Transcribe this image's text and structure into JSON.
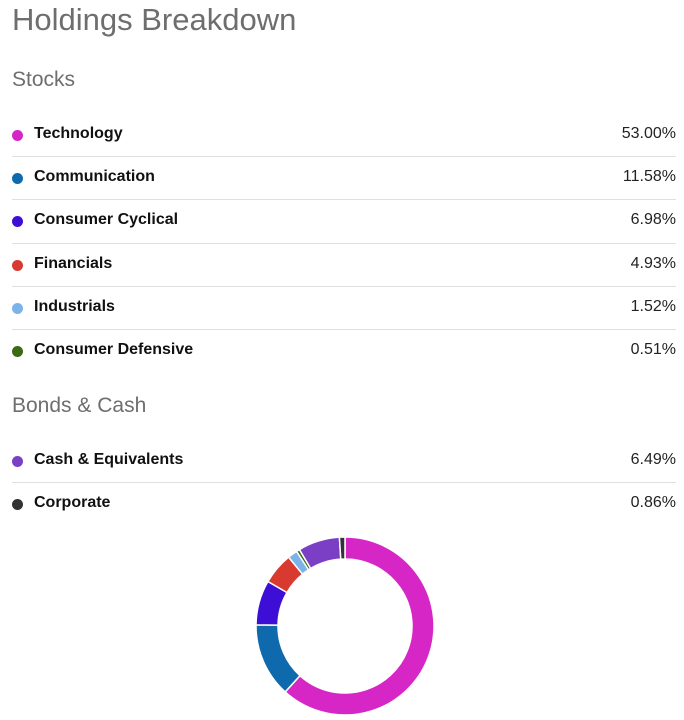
{
  "title": "Holdings Breakdown",
  "sections": [
    {
      "title": "Stocks",
      "items": [
        {
          "label": "Technology",
          "value": "53.00%",
          "color": "#d626c6"
        },
        {
          "label": "Communication",
          "value": "11.58%",
          "color": "#0f6aad"
        },
        {
          "label": "Consumer Cyclical",
          "value": "6.98%",
          "color": "#3d0fd6"
        },
        {
          "label": "Financials",
          "value": "4.93%",
          "color": "#d83a2f"
        },
        {
          "label": "Industrials",
          "value": "1.52%",
          "color": "#7cb4e8"
        },
        {
          "label": "Consumer Defensive",
          "value": "0.51%",
          "color": "#3c6a15"
        }
      ]
    },
    {
      "title": "Bonds & Cash",
      "items": [
        {
          "label": "Cash & Equivalents",
          "value": "6.49%",
          "color": "#7a3fc4"
        },
        {
          "label": "Corporate",
          "value": "0.86%",
          "color": "#333333"
        }
      ]
    }
  ],
  "chart_data": {
    "type": "pie",
    "donut": true,
    "categories": [
      "Technology",
      "Communication",
      "Consumer Cyclical",
      "Financials",
      "Industrials",
      "Consumer Defensive",
      "Cash & Equivalents",
      "Corporate"
    ],
    "values": [
      53.0,
      11.58,
      6.98,
      4.93,
      1.52,
      0.51,
      6.49,
      0.86
    ],
    "colors": [
      "#d626c6",
      "#0f6aad",
      "#3d0fd6",
      "#d83a2f",
      "#7cb4e8",
      "#3c6a15",
      "#7a3fc4",
      "#333333"
    ],
    "direction": "clockwise",
    "start": "top"
  }
}
